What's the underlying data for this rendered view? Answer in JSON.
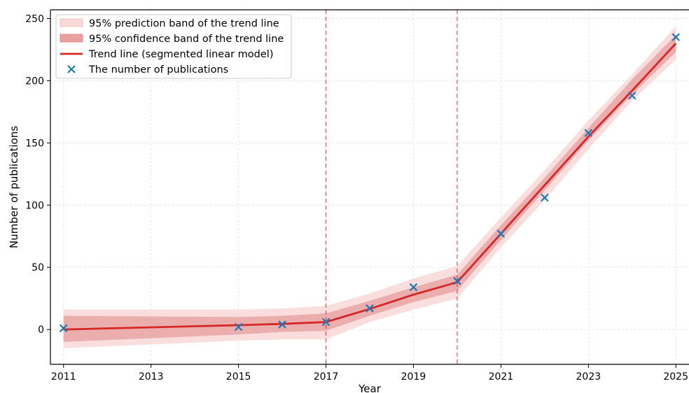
{
  "chart_data": {
    "type": "line",
    "title": "",
    "xlabel": "Year",
    "ylabel": "Number of publications",
    "xlim": [
      2010.7,
      2025.3
    ],
    "ylim": [
      -28,
      257
    ],
    "xticks": [
      2011,
      2013,
      2015,
      2017,
      2019,
      2021,
      2023,
      2025
    ],
    "yticks": [
      0,
      50,
      100,
      150,
      200,
      250
    ],
    "grid": true,
    "legend_position": "upper-left",
    "breakpoints": [
      2017,
      2020
    ],
    "colors": {
      "trend": "#d62728",
      "confidence_band": "#e8a0a0",
      "prediction_band": "#f9d8d8",
      "points": "#1f77b4",
      "breakpoint_line": "#d62728"
    },
    "series": [
      {
        "name": "95% prediction band of the trend line",
        "kind": "band",
        "x": [
          2011,
          2015,
          2016,
          2017,
          2018,
          2019,
          2020,
          2021,
          2022,
          2023,
          2024,
          2025
        ],
        "lower": [
          -15,
          -9,
          -8,
          -8,
          6,
          16,
          25,
          66,
          104,
          145,
          184,
          217
        ],
        "upper": [
          16,
          16,
          17,
          19,
          29,
          41,
          51,
          90,
          128,
          168,
          205,
          244
        ]
      },
      {
        "name": "95% confidence band of the trend line",
        "kind": "band",
        "x": [
          2011,
          2015,
          2016,
          2017,
          2018,
          2019,
          2020,
          2021,
          2022,
          2023,
          2024,
          2025
        ],
        "lower": [
          -10,
          -4,
          -2,
          -1,
          11,
          22,
          31,
          72,
          112,
          152,
          189,
          223
        ],
        "upper": [
          11,
          10,
          11,
          13,
          23,
          34,
          44,
          84,
          122,
          162,
          201,
          237
        ]
      },
      {
        "name": "Trend line (segmented linear model)",
        "kind": "line",
        "x": [
          2011,
          2015,
          2016,
          2017,
          2018,
          2019,
          2020,
          2021,
          2022,
          2023,
          2024,
          2025
        ],
        "y": [
          0,
          3.5,
          4.5,
          6,
          16.5,
          28,
          38,
          77,
          116,
          155,
          192,
          230
        ]
      },
      {
        "name": "The number of publications",
        "kind": "scatter",
        "x": [
          2011,
          2015,
          2016,
          2017,
          2018,
          2019,
          2020,
          2021,
          2022,
          2023,
          2024,
          2025
        ],
        "y": [
          1,
          2,
          4,
          6,
          17,
          34,
          39,
          77,
          106,
          158,
          188,
          235
        ]
      }
    ]
  }
}
